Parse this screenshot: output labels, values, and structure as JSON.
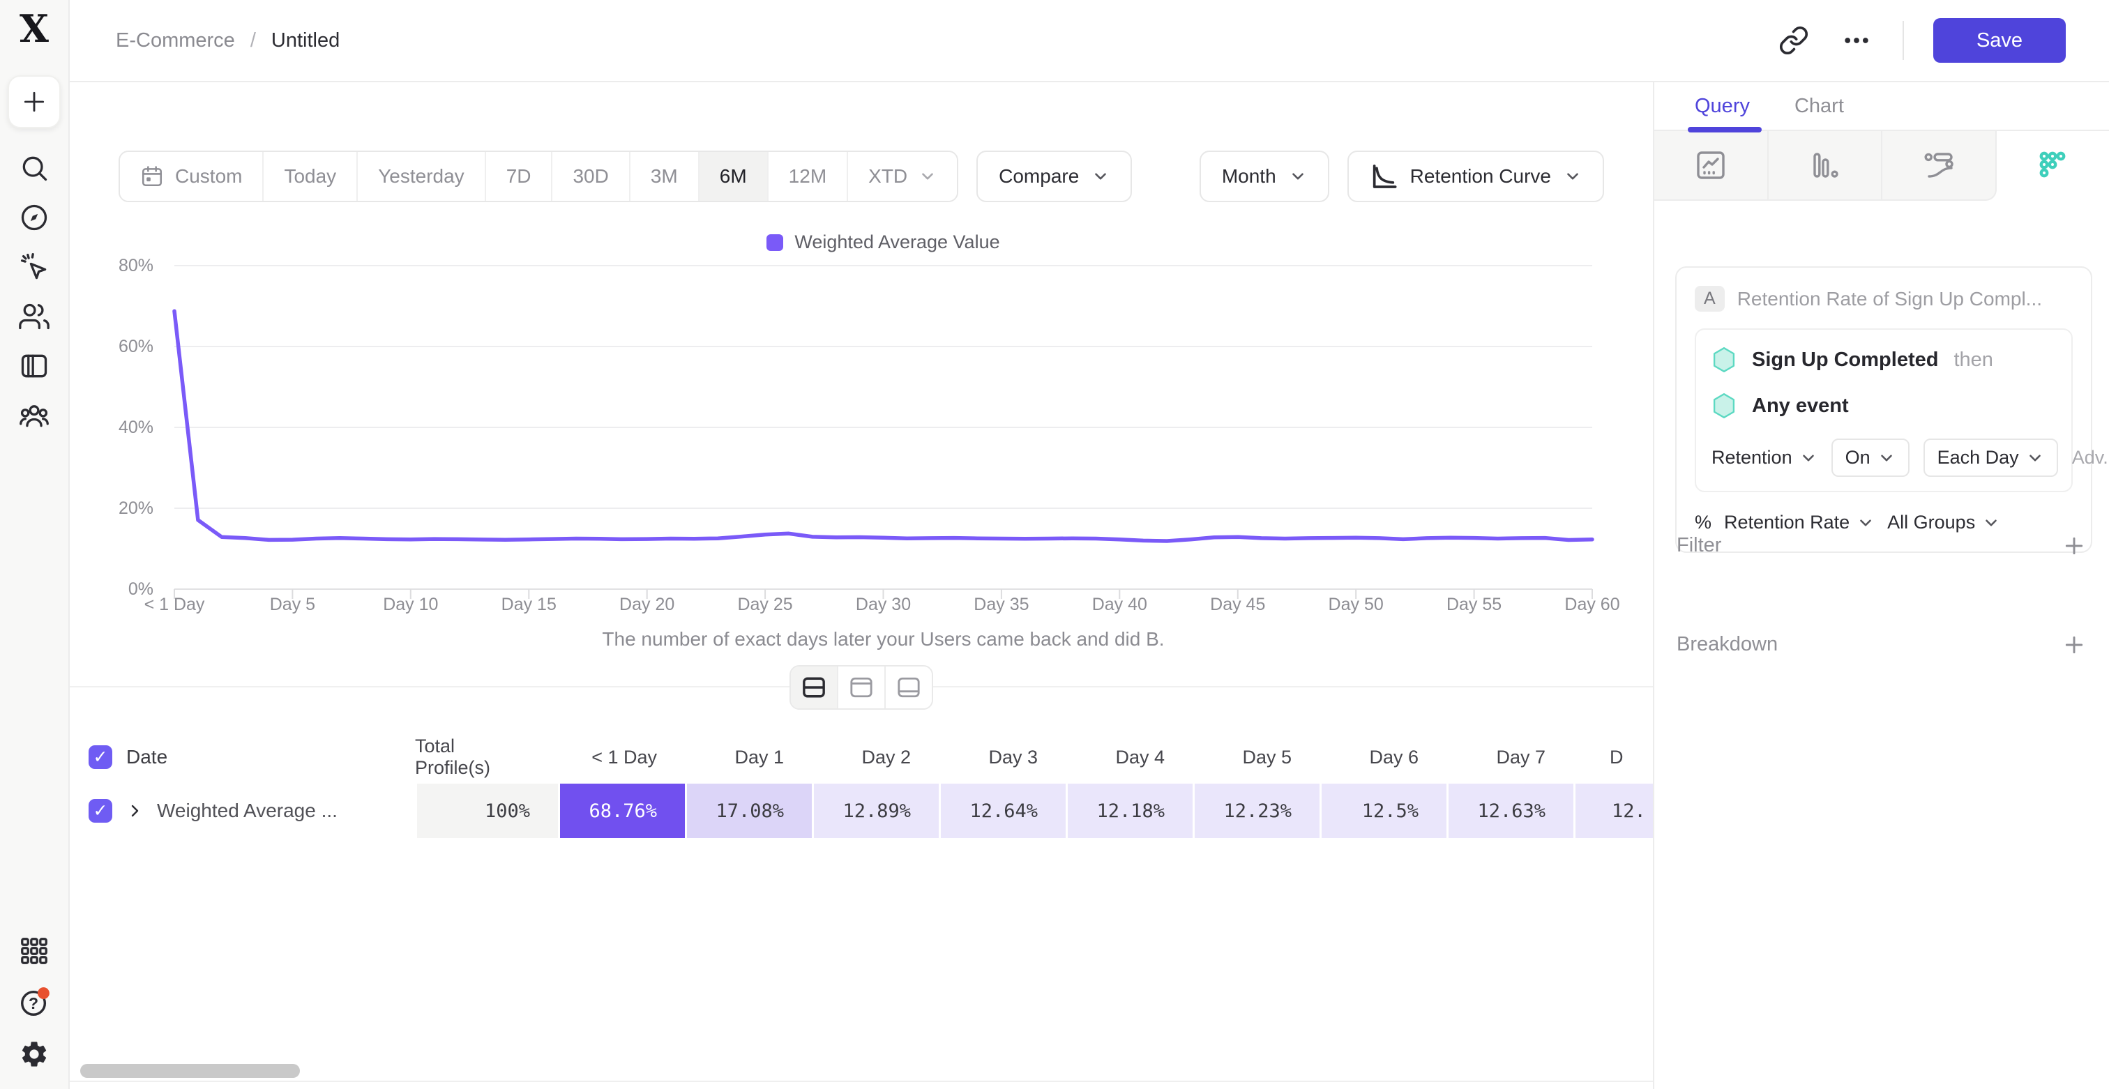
{
  "brand_letter": "X",
  "header": {
    "breadcrumb": {
      "project": "E-Commerce",
      "separator": "/",
      "title": "Untitled"
    },
    "save_label": "Save"
  },
  "toolbar": {
    "presets": [
      {
        "label": "Custom",
        "selected": false
      },
      {
        "label": "Today",
        "selected": false
      },
      {
        "label": "Yesterday",
        "selected": false
      },
      {
        "label": "7D",
        "selected": false
      },
      {
        "label": "30D",
        "selected": false
      },
      {
        "label": "3M",
        "selected": false
      },
      {
        "label": "6M",
        "selected": true
      },
      {
        "label": "12M",
        "selected": false
      },
      {
        "label": "XTD",
        "selected": false
      }
    ],
    "compare_label": "Compare",
    "bucket_label": "Month",
    "chart_type_label": "Retention Curve"
  },
  "legend": {
    "label": "Weighted Average Value",
    "color": "#7a5af8"
  },
  "chart_data": {
    "type": "line",
    "title": "",
    "xlabel": "The number of exact days later your Users came back and did B.",
    "ylabel": "",
    "ylim": [
      0,
      80
    ],
    "y_ticks": [
      0,
      20,
      40,
      60,
      80
    ],
    "y_tick_suffix": "%",
    "x_tick_days": [
      0,
      5,
      10,
      15,
      20,
      25,
      30,
      35,
      40,
      45,
      50,
      55,
      60
    ],
    "x_tick_labels": [
      "< 1 Day",
      "Day 5",
      "Day 10",
      "Day 15",
      "Day 20",
      "Day 25",
      "Day 30",
      "Day 35",
      "Day 40",
      "Day 45",
      "Day 50",
      "Day 55",
      "Day 60"
    ],
    "series_name": "Weighted Average Value",
    "series_color": "#7a5af8",
    "grid": true,
    "legend_position": "top",
    "values": [
      68.76,
      17.08,
      12.89,
      12.64,
      12.18,
      12.23,
      12.5,
      12.63,
      12.5,
      12.35,
      12.3,
      12.4,
      12.35,
      12.25,
      12.2,
      12.3,
      12.4,
      12.5,
      12.45,
      12.35,
      12.4,
      12.5,
      12.45,
      12.55,
      13.0,
      13.5,
      13.75,
      12.95,
      12.8,
      12.85,
      12.7,
      12.55,
      12.6,
      12.65,
      12.55,
      12.5,
      12.45,
      12.5,
      12.55,
      12.5,
      12.3,
      12.0,
      11.9,
      12.3,
      12.8,
      12.9,
      12.6,
      12.5,
      12.6,
      12.65,
      12.7,
      12.6,
      12.35,
      12.6,
      12.7,
      12.65,
      12.5,
      12.6,
      12.65,
      12.15,
      12.3
    ]
  },
  "view_toggle": {
    "options": [
      "split-view",
      "chart-only-view",
      "table-only-view"
    ],
    "selected": "split-view"
  },
  "table": {
    "columns": [
      "Date",
      "Total Profile(s)",
      "< 1 Day",
      "Day 1",
      "Day 2",
      "Day 3",
      "Day 4",
      "Day 5",
      "Day 6",
      "Day 7",
      "D"
    ],
    "row": {
      "label": "Weighted Average ...",
      "values": [
        "100%",
        "68.76%",
        "17.08%",
        "12.89%",
        "12.64%",
        "12.18%",
        "12.23%",
        "12.5%",
        "12.63%",
        "12."
      ]
    },
    "checkbox_glyph": "✓"
  },
  "panel": {
    "tabs": [
      {
        "label": "Query",
        "active": true
      },
      {
        "label": "Chart",
        "active": false
      }
    ],
    "report_icons": [
      "insights-icon",
      "funnels-icon",
      "flows-icon",
      "retention-icon"
    ],
    "active_report": "retention-icon",
    "accent_color": "#4f44db",
    "teal_color": "#3ecfbb",
    "query": {
      "badge": "A",
      "title": "Retention Rate of Sign Up Compl...",
      "step1": "Sign Up Completed",
      "step1_suffix": "then",
      "step2": "Any event",
      "mode_label": "Retention",
      "on_label": "On",
      "interval_label": "Each Day",
      "advanced_label": "Adv...",
      "metric_sign": "%",
      "metric_label": "Retention Rate",
      "groups_label": "All Groups"
    },
    "filter_label": "Filter",
    "breakdown_label": "Breakdown"
  },
  "rail": {
    "icons": [
      "plus-icon",
      "search-icon",
      "compass-icon",
      "cursor-spark-icon",
      "users-icon",
      "board-icon",
      "group-icon"
    ],
    "bottom_icons": [
      "apps-grid-icon",
      "help-icon",
      "settings-icon"
    ],
    "help_badge_color": "#e8502e"
  }
}
